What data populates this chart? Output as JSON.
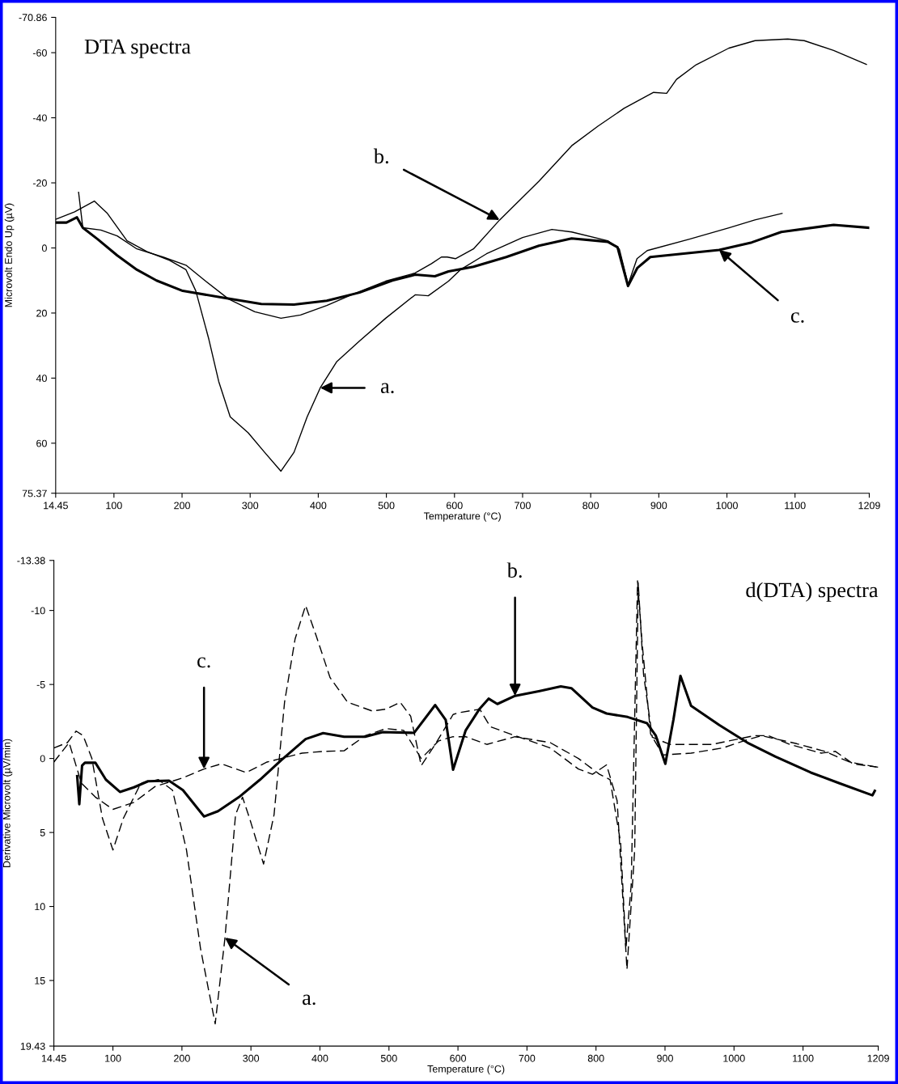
{
  "chart_data": [
    {
      "type": "line",
      "title": "DTA spectra",
      "xlabel": "Temperature (°C)",
      "ylabel": "Microvolt Endo Up (µV)",
      "xlim": [
        14.45,
        1209
      ],
      "xticks": [
        14.45,
        100,
        200,
        300,
        400,
        500,
        600,
        700,
        800,
        900,
        1000,
        1100,
        1209
      ],
      "ylim": [
        75.37,
        -70.86
      ],
      "yticks": [
        -70.86,
        -60,
        -40,
        -20,
        0,
        20,
        40,
        60,
        75.37
      ],
      "grid": false,
      "legend": false,
      "series": [
        {
          "color": "#000000",
          "line_style": "solid",
          "x": [
            14.45,
            42.3,
            71.2,
            90.4,
            119.2,
            148.1,
            181.7,
            205.8,
            220.2,
            239.4,
            253.8,
            270.7,
            297.1,
            321.2,
            345.2,
            364.4,
            383.7,
            402.9,
            426.9,
            460.6,
            499.0,
            542.3,
            561.5,
            591.3,
            608.7,
            647,
            700,
            743,
            772,
            825,
            842,
            855,
            868,
            883,
            945,
            1003,
            1041,
            1081
          ],
          "values": [
            -8.8,
            -11.1,
            -14.4,
            -10.6,
            -2.2,
            1.1,
            3.8,
            6.7,
            13.2,
            28.1,
            41.0,
            51.9,
            56.8,
            62.8,
            68.6,
            62.8,
            51.9,
            43.0,
            35.0,
            28.6,
            21.6,
            14.4,
            14.7,
            10.2,
            6.7,
            1.8,
            -3.2,
            -5.7,
            -4.9,
            -2.2,
            0.3,
            11.2,
            3.3,
            0.8,
            -2.7,
            -6.2,
            -8.6,
            -10.6
          ]
        },
        {
          "color": "#000000",
          "line_style": "solid",
          "x": [
            48.1,
            54.3,
            80.8,
            104.8,
            133.7,
            172.1,
            205.8,
            234.6,
            268.3,
            306.7,
            345.2,
            374,
            412.5,
            451,
            499,
            542.3,
            566.3,
            580.8,
            589.4,
            601.4,
            627.9,
            666.3,
            724,
            772.1,
            810.6,
            849,
            892.3,
            911.5,
            926,
            954.8,
            1002.9,
            1041.3,
            1089.4,
            1113.5,
            1156.7,
            1204.8
          ],
          "values": [
            -17.1,
            -6.2,
            -5.5,
            -3.7,
            0.3,
            2.8,
            5.3,
            10.2,
            15.7,
            19.6,
            21.6,
            20.6,
            17.7,
            14.2,
            10.2,
            7.7,
            4.8,
            2.8,
            2.8,
            3.3,
            0.3,
            -8.6,
            -20.5,
            -31.4,
            -37.4,
            -42.9,
            -47.8,
            -47.5,
            -51.8,
            -56.3,
            -61.4,
            -63.7,
            -64.2,
            -63.7,
            -60.7,
            -56.4
          ]
        },
        {
          "color": "#000000",
          "line_style": "solid",
          "x": [
            14.45,
            30.3,
            45.7,
            54.3,
            76,
            104.8,
            133.7,
            162.5,
            201,
            258.7,
            316.3,
            364.4,
            412.5,
            460.6,
            508.7,
            542.3,
            571.2,
            591.3,
            627.9,
            676,
            724,
            772,
            825,
            839.4,
            854.8,
            868.3,
            887.5,
            988.5,
            1036.5,
            1079.8,
            1156.7,
            1209
          ],
          "values": [
            -7.8,
            -7.8,
            -9.4,
            -6.2,
            -2.7,
            2.3,
            6.7,
            10.0,
            13.2,
            15.2,
            17.2,
            17.4,
            16.2,
            13.7,
            10.0,
            8.2,
            8.7,
            7.2,
            5.8,
            2.8,
            -0.7,
            -2.9,
            -1.9,
            -0.2,
            11.7,
            6.2,
            2.8,
            0.6,
            -1.7,
            -4.9,
            -7.1,
            -6.2
          ]
        }
      ],
      "annotations": [
        {
          "text": "a.",
          "x": 402.9,
          "y": 43.0
        },
        {
          "text": "b.",
          "x": 666.3,
          "y": -8.6
        },
        {
          "text": "c.",
          "x": 988.5,
          "y": 0.6
        }
      ]
    },
    {
      "type": "line",
      "title": "d(DTA) spectra",
      "xlabel": "Temperature (°C)",
      "ylabel": "Derivative Microvolt (µV/min)",
      "xlim": [
        14.45,
        1209
      ],
      "xticks": [
        14.45,
        100,
        200,
        300,
        400,
        500,
        600,
        700,
        800,
        900,
        1000,
        1100,
        1209
      ],
      "ylim": [
        19.43,
        -13.38
      ],
      "yticks": [
        -13.38,
        -10,
        -5,
        0,
        5,
        10,
        15,
        19.43
      ],
      "grid": false,
      "legend": false,
      "series": [
        {
          "color": "#000000",
          "line_style": "dashed",
          "x": [
            14.45,
            34.0,
            46.7,
            56.9,
            69.5,
            84.8,
            100,
            115.2,
            140.6,
            166,
            186.3,
            206.6,
            226.9,
            248.2,
            262.4,
            277.7,
            287.8,
            298,
            318.3,
            333.5,
            348.7,
            364,
            379.2,
            394.4,
            414.7,
            440.1,
            475.6,
            495.9,
            516.2,
            531.5,
            546.7,
            567,
            592.9,
            601,
            631.6,
            646.9,
            682.7,
            733.7,
            774.5,
            794.9,
            815.3,
            830.6,
            844.9,
            856.1,
            861.2,
            868.9,
            881.6,
            907.1,
            968.4,
            1029.6,
            1050,
            1080.6,
            1126.5,
            1146.9,
            1172.4,
            1209
          ],
          "values": [
            -0.71,
            -1.07,
            -1.85,
            -1.54,
            0,
            4.04,
            6.18,
            4.04,
            1.66,
            1.43,
            2.14,
            6.18,
            12.83,
            17.93,
            12.11,
            3.8,
            2.61,
            4.04,
            7.13,
            3.8,
            -3.8,
            -8.08,
            -10.33,
            -8.31,
            -5.46,
            -3.8,
            -3.21,
            -3.33,
            -3.8,
            -2.85,
            0.48,
            -0.95,
            -2.97,
            -3.09,
            -3.33,
            -2.14,
            -1.54,
            -0.71,
            0.71,
            1.07,
            0.43,
            2.85,
            14.25,
            6.18,
            -11.88,
            -5.7,
            -1.43,
            -0.95,
            -0.95,
            -1.54,
            -1.54,
            -0.95,
            -0.36,
            -0.48,
            0.36,
            0.59
          ]
        },
        {
          "color": "#000000",
          "line_style": "solid",
          "x": [
            48.2,
            51.3,
            55.3,
            59.4,
            74.6,
            89.8,
            110.2,
            130.5,
            150.8,
            181.2,
            201.5,
            232,
            252.3,
            282.7,
            313.2,
            343.7,
            379.2,
            404.6,
            435,
            465.5,
            490.9,
            536.5,
            567,
            582.2,
            592.9,
            611.2,
            631.6,
            644.4,
            657.1,
            682.7,
            718.4,
            749,
            764.3,
            794.9,
            815.3,
            845.9,
            874,
            886.7,
            900.5,
            912.2,
            922.4,
            937.8,
            978.6,
            1019.4,
            1060.2,
            1111.2,
            1152,
            1200.5,
            1204
          ],
          "values": [
            1.19,
            3.09,
            0.48,
            0.29,
            0.29,
            1.43,
            2.26,
            1.95,
            1.54,
            1.5,
            2.14,
            3.92,
            3.56,
            2.61,
            1.43,
            0.12,
            -1.31,
            -1.71,
            -1.47,
            -1.47,
            -1.78,
            -1.73,
            -3.61,
            -2.61,
            0.76,
            -1.9,
            -3.37,
            -4.04,
            -3.68,
            -4.23,
            -4.56,
            -4.87,
            -4.75,
            -3.44,
            -3.04,
            -2.8,
            -2.38,
            -1.54,
            0.36,
            -2.61,
            -5.58,
            -3.56,
            -2.26,
            -1.07,
            -0.12,
            0.95,
            1.66,
            2.49,
            2.19
          ]
        },
        {
          "color": "#000000",
          "line_style": "dashed",
          "x": [
            14.45,
            36.5,
            54.3,
            74.6,
            100,
            130.5,
            160.9,
            201.5,
            232,
            257.4,
            292.9,
            323.4,
            343.7,
            374.1,
            404.6,
            435,
            465.5,
            495.9,
            521.3,
            546.7,
            572.1,
            592.9,
            611.2,
            641.8,
            682.7,
            733.7,
            774.5,
            805.1,
            820.4,
            835.7,
            843.4,
            851,
            860.2,
            866.3,
            879.1,
            896.9,
            937.8,
            983.7,
            1014.3,
            1039.8,
            1090.8,
            1131.6,
            1167.3,
            1208.2
          ],
          "values": [
            0.24,
            -1.07,
            1.66,
            2.61,
            3.44,
            2.97,
            1.9,
            1.31,
            0.71,
            0.36,
            0.95,
            0.24,
            0,
            -0.36,
            -0.48,
            -0.52,
            -1.54,
            -2.02,
            -1.9,
            0,
            -1.19,
            -1.47,
            -1.47,
            -0.95,
            -1.47,
            -1.07,
            0,
            1.07,
            1.43,
            5.7,
            12.83,
            8.55,
            -12.0,
            -8.08,
            -1.66,
            -0.24,
            -0.36,
            -0.71,
            -1.19,
            -1.54,
            -1.0,
            -0.48,
            0.24,
            0.59
          ]
        }
      ],
      "annotations": [
        {
          "text": "c.",
          "x": 232,
          "y": 0.71
        },
        {
          "text": "b.",
          "x": 682.7,
          "y": -4.23
        },
        {
          "text": "a.",
          "x": 262.4,
          "y": 12.11
        }
      ]
    }
  ]
}
